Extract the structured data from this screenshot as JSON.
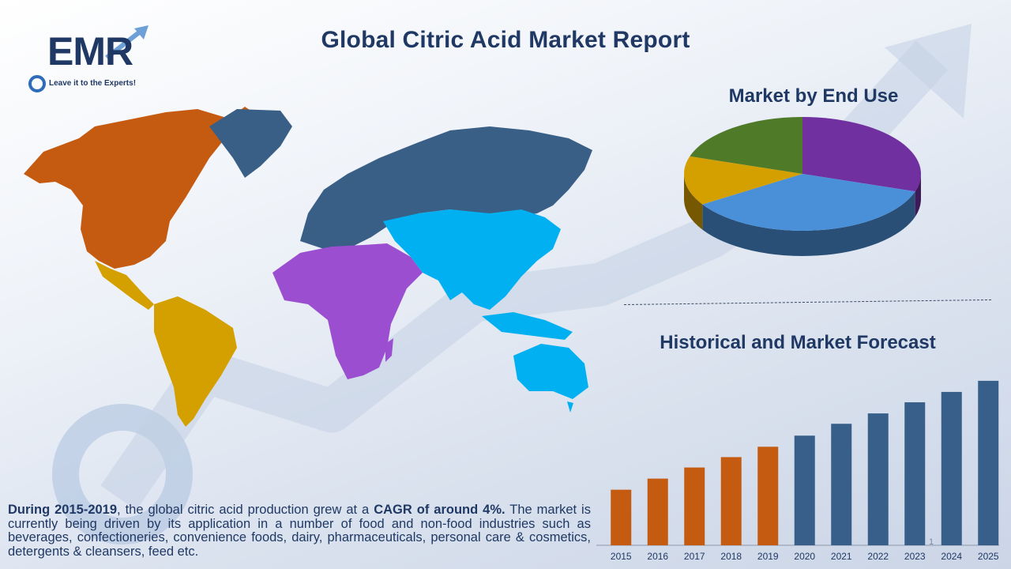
{
  "title": "Global Citric Acid  Market Report",
  "logo": {
    "text": "EMR",
    "tagline": "Leave it to the Experts!"
  },
  "colors": {
    "north_america": "#c55a11",
    "latin_america": "#d4a000",
    "europe_russia": "#3a5f86",
    "mea": "#9b4fd0",
    "asia_pacific": "#00b0f0",
    "bar_historical": "#c55a11",
    "bar_forecast": "#375f8a",
    "heading": "#1f3864"
  },
  "pie_section": {
    "title": "Market by End Use"
  },
  "bar_section": {
    "title": "Historical and Market Forecast"
  },
  "summary": {
    "part1": "During 2015-2019",
    "part2": ", the global citric acid production grew at a ",
    "part3": "CAGR of around 4%.",
    "part4": " The market is currently being driven by its application in a number of food and non-food industries such as beverages, confectioneries, convenience foods, dairy, pharmaceuticals, personal care & cosmetics, detergents & cleansers, feed etc."
  },
  "page_number": "1",
  "chart_data": [
    {
      "type": "pie",
      "title": "Market by End Use",
      "slices": [
        {
          "value": 30,
          "color": "#7030a0"
        },
        {
          "value": 36,
          "color": "#4a90d9"
        },
        {
          "value": 14,
          "color": "#d4a000"
        },
        {
          "value": 20,
          "color": "#4f7a28"
        }
      ]
    },
    {
      "type": "bar",
      "title": "Historical and Market Forecast",
      "categories": [
        "2015",
        "2016",
        "2017",
        "2018",
        "2019",
        "2020",
        "2021",
        "2022",
        "2023",
        "2024",
        "2025"
      ],
      "values": [
        75,
        90,
        105,
        119,
        133,
        148,
        164,
        178,
        193,
        207,
        222
      ],
      "historical_count": 5,
      "ylim": [
        0,
        240
      ]
    }
  ]
}
